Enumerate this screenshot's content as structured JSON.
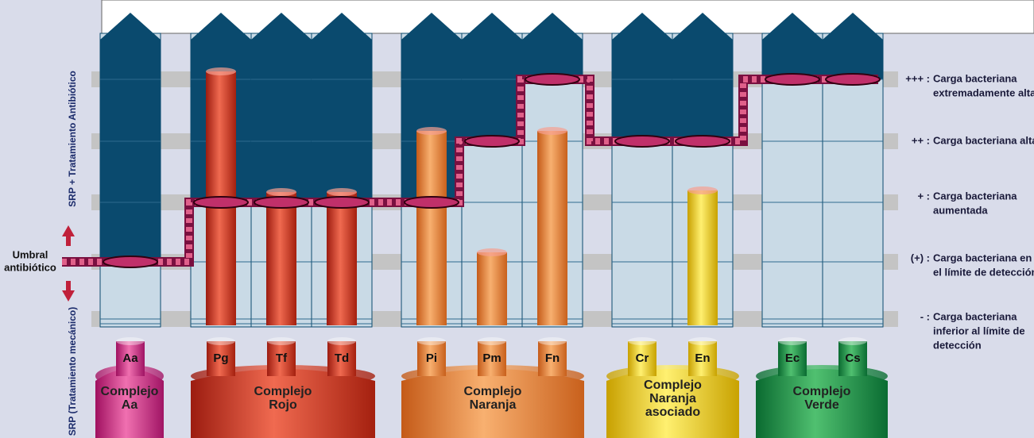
{
  "axis_labels": {
    "upper": "SRP + Tratamiento Antibiótico",
    "lower": "SRP (Tratamiento mecánico)",
    "threshold": [
      "Umbral",
      "antibiótico"
    ]
  },
  "legend": [
    {
      "symbol": "+++ :",
      "lines": [
        "Carga bacteriana",
        "extremadamente alta"
      ]
    },
    {
      "symbol": "++ :",
      "lines": [
        "Carga bacteriana alta"
      ]
    },
    {
      "symbol": "+ :",
      "lines": [
        "Carga bacteriana",
        "aumentada"
      ]
    },
    {
      "symbol": "(+) :",
      "lines": [
        "Carga bacteriana en",
        "el límite de detección"
      ]
    },
    {
      "symbol": "- :",
      "lines": [
        "Carga bacteriana",
        "inferior al límite de",
        "detección"
      ]
    }
  ],
  "groups": [
    {
      "name": [
        "Complejo",
        "Aa"
      ],
      "bacteria": [
        "Aa"
      ]
    },
    {
      "name": [
        "Complejo",
        "Rojo"
      ],
      "bacteria": [
        "Pg",
        "Tf",
        "Td"
      ]
    },
    {
      "name": [
        "Complejo",
        "Naranja"
      ],
      "bacteria": [
        "Pi",
        "Pm",
        "Fn"
      ]
    },
    {
      "name": [
        "Complejo",
        "Naranja",
        "asociado"
      ],
      "bacteria": [
        "Cr",
        "En"
      ]
    },
    {
      "name": [
        "Complejo",
        "Verde"
      ],
      "bacteria": [
        "Ec",
        "Cs"
      ]
    }
  ]
}
